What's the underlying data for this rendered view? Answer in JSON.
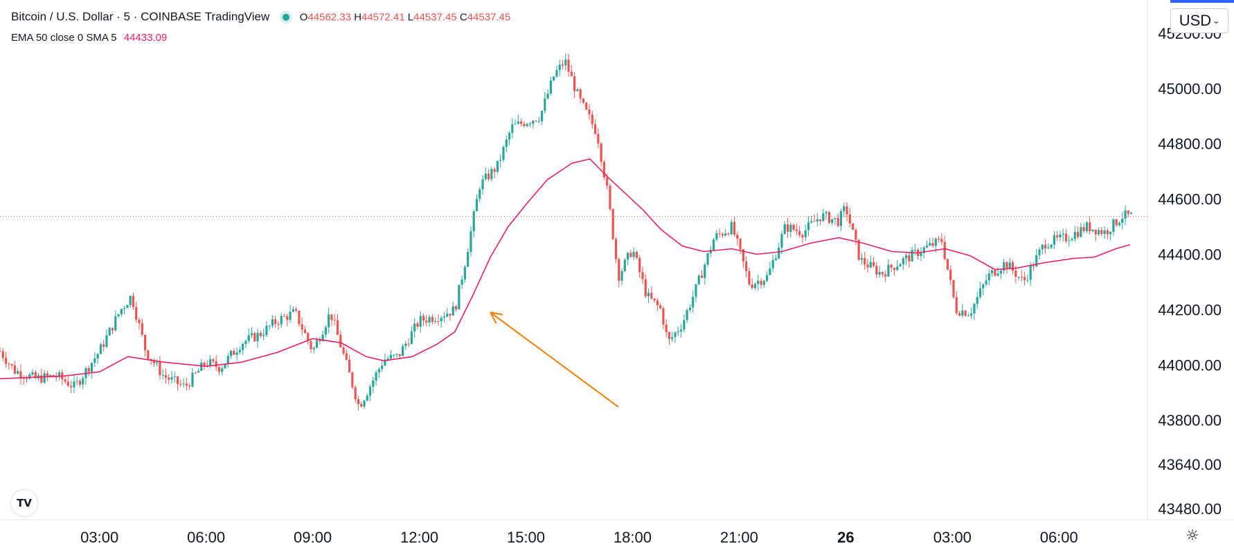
{
  "header": {
    "symbol": "Bitcoin / U.S. Dollar",
    "interval": "5",
    "exchange": "COINBASE",
    "platform": "TradingView",
    "status_color": "#26a69a",
    "open_label": "O",
    "open": "44562.33",
    "high_label": "H",
    "high": "44572.41",
    "low_label": "L",
    "low": "44537.45",
    "close_label": "C",
    "close": "44537.45"
  },
  "indicator": {
    "label": "EMA 50 close 0 SMA 5",
    "value": "44433.09",
    "color": "#e91e63"
  },
  "currency_button": {
    "label": "USD",
    "chevron": "chevron-down-icon"
  },
  "icons": {
    "logo": "tradingview-logo-icon",
    "settings": "sun-settings-icon"
  },
  "logo_text": "TV",
  "settings_glyph": "☼",
  "colors": {
    "up": "#26a69a",
    "down": "#ef5350",
    "ema": "#e91e63",
    "annotation": "#f57c00",
    "accent": "#2962ff"
  },
  "chart_data": {
    "type": "candlestick",
    "ylim": [
      43440,
      45320
    ],
    "yticks": [
      "45200.00",
      "45000.00",
      "44800.00",
      "44600.00",
      "44400.00",
      "44200.00",
      "44000.00",
      "43800.00",
      "43640.00",
      "43480.00"
    ],
    "ytick_values": [
      45200,
      45000,
      44800,
      44600,
      44400,
      44200,
      44000,
      43800,
      43640,
      43480
    ],
    "xticks": [
      "03:00",
      "06:00",
      "09:00",
      "12:00",
      "15:00",
      "18:00",
      "21:00",
      "26",
      "03:00",
      "06:00"
    ],
    "xtick_hours": [
      3,
      6,
      9,
      12,
      15,
      18,
      21,
      24,
      27,
      30
    ],
    "xtick_bold": [
      false,
      false,
      false,
      false,
      false,
      false,
      false,
      true,
      false,
      false
    ],
    "xlim_hours": [
      0.2,
      32.1
    ],
    "current_price": 44537.45,
    "series_anchor_path": [
      [
        0.2,
        44050
      ],
      [
        0.6,
        43980
      ],
      [
        1.2,
        43950
      ],
      [
        1.8,
        43960
      ],
      [
        2.3,
        43920
      ],
      [
        3.0,
        44050
      ],
      [
        3.6,
        44200
      ],
      [
        3.9,
        44250
      ],
      [
        4.3,
        44050
      ],
      [
        4.8,
        43960
      ],
      [
        5.4,
        43920
      ],
      [
        6.0,
        44010
      ],
      [
        6.4,
        43990
      ],
      [
        7.0,
        44080
      ],
      [
        7.5,
        44110
      ],
      [
        8.0,
        44160
      ],
      [
        8.5,
        44190
      ],
      [
        9.0,
        44050
      ],
      [
        9.5,
        44190
      ],
      [
        10.0,
        43980
      ],
      [
        10.3,
        43850
      ],
      [
        10.6,
        43920
      ],
      [
        11.0,
        44020
      ],
      [
        11.4,
        44030
      ],
      [
        12.0,
        44160
      ],
      [
        12.6,
        44180
      ],
      [
        13.0,
        44200
      ],
      [
        13.3,
        44380
      ],
      [
        13.7,
        44650
      ],
      [
        14.2,
        44720
      ],
      [
        14.6,
        44860
      ],
      [
        15.0,
        44880
      ],
      [
        15.4,
        44900
      ],
      [
        15.8,
        45050
      ],
      [
        16.1,
        45100
      ],
      [
        16.5,
        44960
      ],
      [
        17.0,
        44840
      ],
      [
        17.3,
        44620
      ],
      [
        17.6,
        44320
      ],
      [
        18.0,
        44420
      ],
      [
        18.4,
        44250
      ],
      [
        18.8,
        44200
      ],
      [
        19.0,
        44080
      ],
      [
        19.4,
        44150
      ],
      [
        19.8,
        44280
      ],
      [
        20.3,
        44460
      ],
      [
        20.8,
        44500
      ],
      [
        21.3,
        44290
      ],
      [
        21.8,
        44320
      ],
      [
        22.3,
        44500
      ],
      [
        22.8,
        44480
      ],
      [
        23.3,
        44540
      ],
      [
        23.8,
        44520
      ],
      [
        24.0,
        44570
      ],
      [
        24.4,
        44380
      ],
      [
        25.0,
        44330
      ],
      [
        25.5,
        44370
      ],
      [
        26.2,
        44420
      ],
      [
        26.7,
        44450
      ],
      [
        27.1,
        44200
      ],
      [
        27.5,
        44190
      ],
      [
        28.0,
        44320
      ],
      [
        28.5,
        44370
      ],
      [
        29.0,
        44300
      ],
      [
        29.6,
        44440
      ],
      [
        30.2,
        44460
      ],
      [
        30.8,
        44500
      ],
      [
        31.3,
        44480
      ],
      [
        31.8,
        44540
      ],
      [
        32.1,
        44537
      ]
    ],
    "ema_line": [
      [
        0.2,
        43950
      ],
      [
        2.0,
        43960
      ],
      [
        3.0,
        43975
      ],
      [
        3.8,
        44030
      ],
      [
        4.8,
        44010
      ],
      [
        6.0,
        43995
      ],
      [
        7.0,
        44010
      ],
      [
        8.0,
        44045
      ],
      [
        9.0,
        44095
      ],
      [
        9.8,
        44080
      ],
      [
        10.5,
        44030
      ],
      [
        11.0,
        44015
      ],
      [
        11.8,
        44030
      ],
      [
        12.5,
        44075
      ],
      [
        13.0,
        44120
      ],
      [
        13.5,
        44250
      ],
      [
        14.0,
        44390
      ],
      [
        14.5,
        44500
      ],
      [
        15.0,
        44580
      ],
      [
        15.6,
        44670
      ],
      [
        16.3,
        44730
      ],
      [
        16.8,
        44745
      ],
      [
        17.3,
        44680
      ],
      [
        17.8,
        44620
      ],
      [
        18.3,
        44560
      ],
      [
        18.8,
        44490
      ],
      [
        19.4,
        44430
      ],
      [
        20.0,
        44410
      ],
      [
        20.8,
        44420
      ],
      [
        21.5,
        44400
      ],
      [
        22.2,
        44410
      ],
      [
        23.0,
        44440
      ],
      [
        23.8,
        44460
      ],
      [
        24.5,
        44440
      ],
      [
        25.3,
        44410
      ],
      [
        26.0,
        44405
      ],
      [
        26.8,
        44420
      ],
      [
        27.5,
        44395
      ],
      [
        28.2,
        44345
      ],
      [
        28.8,
        44350
      ],
      [
        29.6,
        44370
      ],
      [
        30.4,
        44385
      ],
      [
        31.0,
        44390
      ],
      [
        31.6,
        44420
      ],
      [
        32.0,
        44435
      ]
    ],
    "annotation_arrow": {
      "from": [
        17.6,
        43848
      ],
      "to": [
        14.0,
        44190
      ]
    }
  }
}
